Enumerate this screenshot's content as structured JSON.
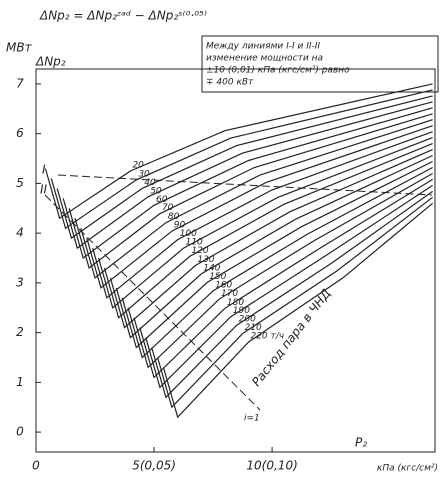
{
  "chart_data": {
    "type": "line",
    "title": "ΔNp₂ = ΔNp₂ᶻᵃᵈ − ΔNp₂ˢ⁽⁰·⁰⁵⁾",
    "y_unit": "МВт",
    "y_label": "ΔNp₂",
    "x_label": "P₂",
    "x_unit": "кПа (кгс/см²)",
    "note": [
      "Между линиями I-I и II-II",
      "изменение мощности на",
      "±10 (0,01) кПа (кгс/см²) равно",
      "∓ 400 кВт"
    ],
    "line_labels": [
      "I",
      "II",
      "i=1"
    ],
    "series_title": "Расход пара в ЧНД",
    "xlim": [
      0,
      16.9
    ],
    "ylim": [
      -0.4,
      7.3
    ],
    "xticks": [
      0,
      {
        "value": 5,
        "label": "5(0,05)"
      },
      {
        "value": 10,
        "label": "10(0,10)"
      }
    ],
    "yticks": [
      0,
      1,
      2,
      3,
      4,
      5,
      6,
      7
    ],
    "grid": false,
    "color": "#222",
    "series": [
      {
        "name": "20",
        "x": [
          0.4,
          1,
          4,
          8,
          16.8
        ],
        "values": [
          5.3,
          4.3,
          5.25,
          6.06,
          7
        ]
      },
      {
        "name": "30",
        "x": [
          0.65,
          1.25,
          4.25,
          8.25,
          16.8
        ],
        "values": [
          5.1,
          4.1,
          5.07,
          5.91,
          6.88
        ]
      },
      {
        "name": "40",
        "x": [
          0.9,
          1.5,
          4.5,
          8.5,
          16.8
        ],
        "values": [
          4.9,
          3.9,
          4.9,
          5.76,
          6.76
        ]
      },
      {
        "name": "50",
        "x": [
          1.15,
          1.75,
          4.75,
          8.75,
          16.8
        ],
        "values": [
          4.7,
          3.7,
          4.73,
          5.61,
          6.64
        ]
      },
      {
        "name": "60",
        "x": [
          1.4,
          2,
          5,
          9,
          16.8
        ],
        "values": [
          4.5,
          3.5,
          4.56,
          5.46,
          6.52
        ]
      },
      {
        "name": "70",
        "x": [
          1.65,
          2.25,
          5.25,
          9.25,
          16.8
        ],
        "values": [
          4.3,
          3.3,
          4.39,
          5.32,
          6.4
        ]
      },
      {
        "name": "80",
        "x": [
          1.9,
          2.5,
          5.5,
          9.5,
          16.8
        ],
        "values": [
          4.1,
          3.1,
          4.21,
          5.17,
          6.28
        ]
      },
      {
        "name": "90",
        "x": [
          2.15,
          2.75,
          5.75,
          9.75,
          16.8
        ],
        "values": [
          3.9,
          2.9,
          4.04,
          5.02,
          6.16
        ]
      },
      {
        "name": "100",
        "x": [
          2.4,
          3,
          6,
          10,
          16.8
        ],
        "values": [
          3.7,
          2.7,
          3.87,
          4.87,
          6.04
        ]
      },
      {
        "name": "110",
        "x": [
          2.65,
          3.25,
          6.25,
          10.25,
          16.8
        ],
        "values": [
          3.5,
          2.5,
          3.7,
          4.72,
          5.92
        ]
      },
      {
        "name": "120",
        "x": [
          2.9,
          3.5,
          6.5,
          10.5,
          16.8
        ],
        "values": [
          3.3,
          2.3,
          3.53,
          4.58,
          5.8
        ]
      },
      {
        "name": "130",
        "x": [
          3.15,
          3.75,
          6.75,
          10.75,
          16.8
        ],
        "values": [
          3.1,
          2.1,
          3.35,
          4.43,
          5.68
        ]
      },
      {
        "name": "140",
        "x": [
          3.4,
          4,
          7,
          11,
          16.8
        ],
        "values": [
          2.9,
          1.9,
          3.18,
          4.28,
          5.56
        ]
      },
      {
        "name": "150",
        "x": [
          3.65,
          4.25,
          7.25,
          11.25,
          16.8
        ],
        "values": [
          2.7,
          1.7,
          3.01,
          4.13,
          5.44
        ]
      },
      {
        "name": "160",
        "x": [
          3.9,
          4.5,
          7.5,
          11.5,
          16.8
        ],
        "values": [
          2.5,
          1.5,
          2.84,
          3.98,
          5.32
        ]
      },
      {
        "name": "170",
        "x": [
          4.15,
          4.75,
          7.75,
          11.75,
          16.8
        ],
        "values": [
          2.3,
          1.3,
          2.67,
          3.84,
          5.2
        ]
      },
      {
        "name": "180",
        "x": [
          4.4,
          5,
          8,
          12,
          16.8
        ],
        "values": [
          2.1,
          1.1,
          2.49,
          3.69,
          5.08
        ]
      },
      {
        "name": "190",
        "x": [
          4.65,
          5.25,
          8.25,
          12.25,
          16.8
        ],
        "values": [
          1.9,
          0.9,
          2.32,
          3.54,
          4.96
        ]
      },
      {
        "name": "200",
        "x": [
          4.9,
          5.5,
          8.5,
          12.5,
          16.8
        ],
        "values": [
          1.7,
          0.7,
          2.15,
          3.39,
          4.84
        ]
      },
      {
        "name": "210",
        "x": [
          5.15,
          5.75,
          8.75,
          12.75,
          16.8
        ],
        "values": [
          1.5,
          0.5,
          1.98,
          3.24,
          4.72
        ]
      },
      {
        "name": "220 т/ч",
        "x": [
          5.4,
          6,
          9,
          13,
          16.8
        ],
        "values": [
          1.3,
          0.3,
          1.81,
          3.1,
          4.6
        ]
      }
    ]
  }
}
